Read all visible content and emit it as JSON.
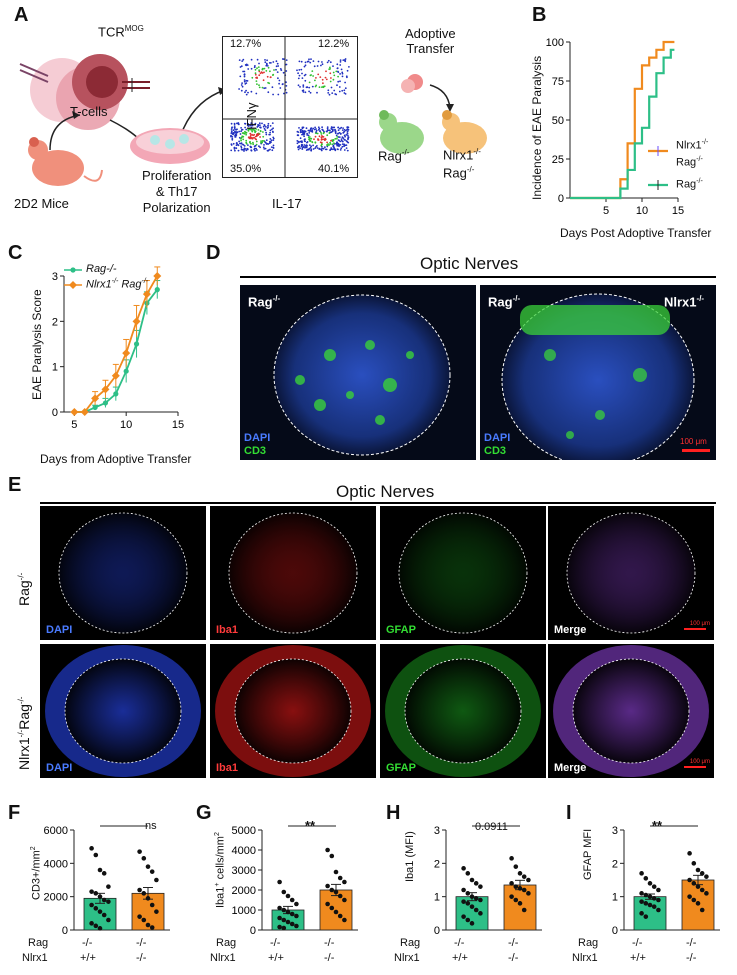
{
  "panels": {
    "A": {
      "label": "A",
      "tcr": "TCR",
      "tcr_sup": "MOG",
      "tcells": "T-cells",
      "mice": "2D2 Mice",
      "prolif1": "Proliferation",
      "prolif2": "& Th17",
      "prolif3": "Polarization",
      "ifng": "IFNγ",
      "il17": "IL-17",
      "q_tl": "12.7%",
      "q_tr": "12.2%",
      "q_bl": "35.0%",
      "q_br": "40.1%",
      "adoptive1": "Adoptive",
      "adoptive2": "Transfer",
      "rag": "Rag",
      "rag_sup": "-/-",
      "nlrx1": "Nlrx1",
      "nlrx1_sup": "-/-",
      "rag2": "Rag",
      "rag2_sup": "-/-"
    },
    "B": {
      "label": "B",
      "ylabel": "Incidence of EAE Paralysis",
      "xlabel": "Days Post Adoptive Transfer",
      "legend_nlrx1": "Nlrx1",
      "legend_nlrx1_sup": "-/-",
      "legend_rag_a": "Rag",
      "legend_rag_a_sup": "-/-",
      "legend_rag": "Rag",
      "legend_rag_sup": "-/-"
    },
    "C": {
      "label": "C",
      "ylabel": "EAE Paralysis Score",
      "xlabel": "Days from Adoptive Transfer",
      "legend_rag": "Rag-/-",
      "legend_nlrx1": "Nlrx1",
      "legend_nlrx1_sup": "-/-",
      "legend_nlrx1_rag": "Rag",
      "legend_nlrx1_rag_sup": "-/-"
    },
    "D": {
      "label": "D",
      "title": "Optic Nerves",
      "left_label": "Rag",
      "left_label_sup": "-/-",
      "right_label_a": "Rag",
      "right_label_a_sup": "-/-",
      "right_label_b": "Nlrx1",
      "right_label_b_sup": "-/-",
      "dapi": "DAPI",
      "cd3": "CD3",
      "dapi2": "DAPI",
      "cd3_2": "CD3",
      "scale": "100 μm"
    },
    "E": {
      "label": "E",
      "title": "Optic  Nerves",
      "row1": "Rag",
      "row1_sup": "-/-",
      "row2_a": "Nlrx1",
      "row2_a_sup": "-/-",
      "row2_b": "Rag",
      "row2_b_sup": "-/-",
      "c_dapi": "DAPI",
      "c_iba1": "Iba1",
      "c_gfap": "GFAP",
      "c_merge": "Merge",
      "scale": "100 μm"
    },
    "F": {
      "label": "F",
      "ylabel": "CD3+/mm",
      "ylabel_sup": "2",
      "sig": "ns"
    },
    "G": {
      "label": "G",
      "ylabel": "Iba1",
      "ylabel_sup": "+",
      "ylabel2": " cells/mm",
      "ylabel2_sup": "2",
      "sig": "**"
    },
    "H": {
      "label": "H",
      "ylabel": "Iba1 (MFI)",
      "sig": "0.0911"
    },
    "I": {
      "label": "I",
      "ylabel": "GFAP MFI",
      "sig": "**"
    },
    "genotype": {
      "rag": "Rag",
      "nlrx1": "Nlrx1",
      "m": "-/-",
      "p": "+/+"
    }
  },
  "colors": {
    "rag": "#2dbf87",
    "nlrx1": "#f08a1e",
    "dapi": "#3a6bff",
    "iba1": "#ff3030",
    "gfap": "#33dd33"
  },
  "chart_data": [
    {
      "type": "line",
      "panel": "B",
      "xlabel": "Days Post Adoptive Transfer",
      "ylabel": "Incidence of EAE Paralysis",
      "xlim": [
        0,
        15
      ],
      "ylim": [
        0,
        100
      ],
      "xticks": [
        5,
        10,
        15
      ],
      "yticks": [
        0,
        25,
        50,
        75,
        100
      ],
      "series": [
        {
          "name": "Nlrx1-/- Rag-/-",
          "color": "#f08a1e",
          "x": [
            0,
            7,
            8,
            9,
            10,
            11,
            12,
            13,
            14
          ],
          "y": [
            0,
            12,
            35,
            70,
            85,
            90,
            95,
            100,
            100
          ]
        },
        {
          "name": "Rag-/-",
          "color": "#2dbf87",
          "x": [
            0,
            7,
            8,
            9,
            10,
            11,
            12,
            13,
            14
          ],
          "y": [
            0,
            6,
            18,
            35,
            45,
            65,
            80,
            90,
            95
          ]
        }
      ]
    },
    {
      "type": "line",
      "panel": "C",
      "xlabel": "Days from Adoptive Transfer",
      "ylabel": "EAE Paralysis Score",
      "xlim": [
        4,
        15
      ],
      "ylim": [
        0,
        3
      ],
      "xticks": [
        5,
        10,
        15
      ],
      "yticks": [
        0,
        1,
        2,
        3
      ],
      "series": [
        {
          "name": "Rag-/-",
          "color": "#2dbf87",
          "x": [
            5,
            6,
            7,
            8,
            9,
            10,
            11,
            12,
            13
          ],
          "y": [
            0,
            0,
            0.1,
            0.2,
            0.4,
            0.9,
            1.5,
            2.4,
            2.7
          ],
          "err": [
            0,
            0,
            0.05,
            0.1,
            0.15,
            0.25,
            0.3,
            0.25,
            0.2
          ]
        },
        {
          "name": "Nlrx1-/- Rag-/-",
          "color": "#f08a1e",
          "x": [
            5,
            6,
            7,
            8,
            9,
            10,
            11,
            12,
            13
          ],
          "y": [
            0,
            0,
            0.3,
            0.5,
            0.8,
            1.3,
            2.0,
            2.6,
            3.0
          ],
          "err": [
            0,
            0,
            0.15,
            0.2,
            0.25,
            0.3,
            0.35,
            0.3,
            0.2
          ]
        }
      ]
    },
    {
      "type": "bar",
      "panel": "F",
      "ylabel": "CD3+/mm2",
      "ylim": [
        0,
        6000
      ],
      "yticks": [
        0,
        2000,
        4000,
        6000
      ],
      "categories": [
        "Rag -/- Nlrx1 +/+",
        "Rag -/- Nlrx1 -/-"
      ],
      "values": [
        1900,
        2200
      ],
      "err": [
        300,
        350
      ],
      "points": [
        [
          4900,
          4500,
          3600,
          3400,
          2600,
          2300,
          2200,
          2000,
          1800,
          1700,
          1500,
          1300,
          1100,
          900,
          600,
          400,
          250,
          100
        ],
        [
          4700,
          4300,
          3800,
          3500,
          3000,
          2400,
          2200,
          1900,
          1500,
          1100,
          800,
          600,
          300,
          150
        ]
      ]
    },
    {
      "type": "bar",
      "panel": "G",
      "ylabel": "Iba1+ cells/mm2",
      "ylim": [
        0,
        5000
      ],
      "yticks": [
        0,
        1000,
        2000,
        3000,
        4000,
        5000
      ],
      "categories": [
        "Rag -/- Nlrx1 +/+",
        "Rag -/- Nlrx1 -/-"
      ],
      "values": [
        1000,
        2000
      ],
      "err": [
        180,
        280
      ],
      "points": [
        [
          2400,
          1900,
          1700,
          1500,
          1300,
          1100,
          1000,
          900,
          800,
          700,
          600,
          500,
          400,
          300,
          200,
          150,
          100
        ],
        [
          4000,
          3700,
          2900,
          2600,
          2400,
          2200,
          2000,
          1900,
          1700,
          1500,
          1300,
          1100,
          900,
          700,
          500
        ]
      ]
    },
    {
      "type": "bar",
      "panel": "H",
      "ylabel": "Iba1 (MFI)",
      "ylim": [
        0,
        3
      ],
      "yticks": [
        0,
        1,
        2,
        3
      ],
      "categories": [
        "Rag -/- Nlrx1 +/+",
        "Rag -/- Nlrx1 -/-"
      ],
      "values": [
        1.0,
        1.35
      ],
      "err": [
        0.12,
        0.14
      ],
      "points": [
        [
          1.85,
          1.7,
          1.5,
          1.4,
          1.3,
          1.2,
          1.1,
          1.0,
          0.95,
          0.9,
          0.85,
          0.8,
          0.7,
          0.6,
          0.5,
          0.4,
          0.3,
          0.2
        ],
        [
          2.15,
          1.9,
          1.7,
          1.6,
          1.5,
          1.4,
          1.3,
          1.25,
          1.2,
          1.1,
          1.0,
          0.9,
          0.8,
          0.6
        ]
      ]
    },
    {
      "type": "bar",
      "panel": "I",
      "ylabel": "GFAP MFI",
      "ylim": [
        0,
        3
      ],
      "yticks": [
        0,
        1,
        2,
        3
      ],
      "categories": [
        "Rag -/- Nlrx1 +/+",
        "Rag -/- Nlrx1 -/-"
      ],
      "values": [
        1.0,
        1.5
      ],
      "err": [
        0.08,
        0.14
      ],
      "points": [
        [
          1.7,
          1.55,
          1.4,
          1.3,
          1.2,
          1.1,
          1.05,
          1.0,
          0.95,
          0.9,
          0.85,
          0.8,
          0.75,
          0.7,
          0.6,
          0.5,
          0.4
        ],
        [
          2.3,
          2.0,
          1.8,
          1.7,
          1.6,
          1.5,
          1.4,
          1.3,
          1.2,
          1.1,
          1.0,
          0.9,
          0.8,
          0.6
        ]
      ]
    }
  ]
}
